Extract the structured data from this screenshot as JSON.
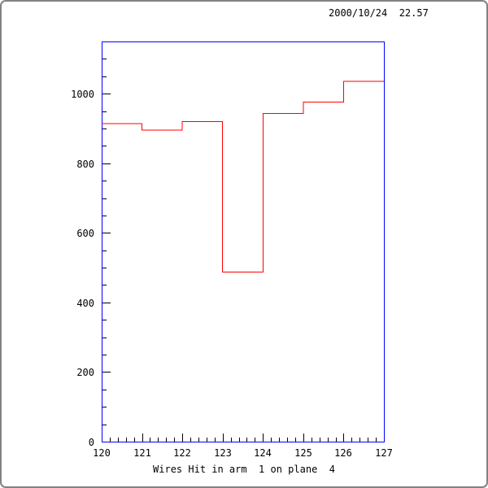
{
  "header": {
    "timestamp": "2000/10/24  22.57"
  },
  "chart_data": {
    "type": "bar",
    "subtype": "step-histogram",
    "title": "",
    "xlabel": "Wires Hit in arm  1 on plane  4",
    "ylabel": "",
    "bin_edges": [
      120,
      121,
      122,
      123,
      124,
      125,
      126,
      127
    ],
    "categories": [
      "120-121",
      "121-122",
      "122-123",
      "123-124",
      "124-125",
      "125-126",
      "126-127"
    ],
    "values": [
      914,
      895,
      920,
      487,
      943,
      976,
      1035
    ],
    "xlim": [
      120,
      127
    ],
    "ylim": [
      0,
      1150
    ],
    "x_major_step": 1,
    "x_minor_step": 0.2,
    "y_major_step": 200,
    "y_minor_step": 50,
    "x_tick_labels": [
      "120",
      "121",
      "122",
      "123",
      "124",
      "125",
      "126",
      "127"
    ],
    "y_tick_labels": [
      "0",
      "200",
      "400",
      "600",
      "800",
      "1000"
    ],
    "y_tick_values": [
      0,
      200,
      400,
      600,
      800,
      1000
    ],
    "grid": false,
    "legend": null,
    "line_color": "#ff0000",
    "frame_color": "#0000ff",
    "tick_color": "#000000",
    "text_color": "#000000",
    "background_color": "#ffffff"
  }
}
